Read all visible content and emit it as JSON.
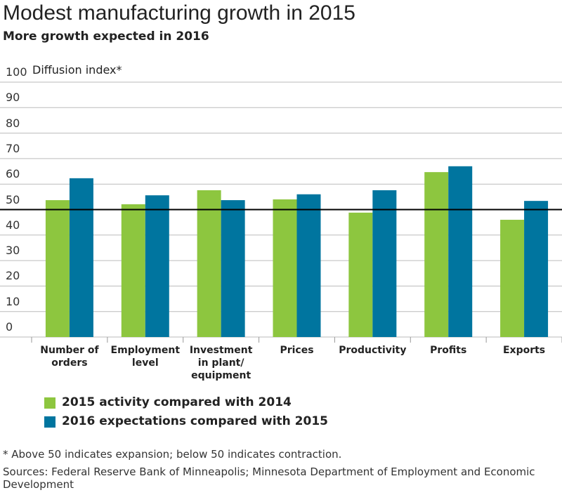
{
  "chart_data": {
    "type": "bar",
    "title": "Modest manufacturing growth in 2015",
    "subtitle": "More growth expected in 2016",
    "y_label": "Diffusion index*",
    "categories": [
      "Number of orders",
      "Employment level",
      "Investment in plant/ equipment",
      "Prices",
      "Productivity",
      "Profits",
      "Exports"
    ],
    "series": [
      {
        "name": "2015 activity compared with 2014",
        "color": "#8dc63f",
        "values": [
          53.7,
          52.1,
          57.6,
          54,
          48.8,
          64.7,
          46
        ]
      },
      {
        "name": "2016 expectations compared with 2015",
        "color": "#00759f",
        "values": [
          62.3,
          55.6,
          53.7,
          56,
          57.6,
          67,
          53.4
        ]
      }
    ],
    "ylim": [
      0,
      100
    ],
    "yticks": [
      0,
      10,
      20,
      30,
      40,
      50,
      60,
      70,
      80,
      90,
      100
    ],
    "grid": true,
    "reference_line": 50,
    "footnote": "* Above 50 indicates expansion; below 50 indicates contraction.",
    "source": "Sources: Federal Reserve Bank of Minneapolis; Minnesota Department of Employment and Economic Development"
  }
}
